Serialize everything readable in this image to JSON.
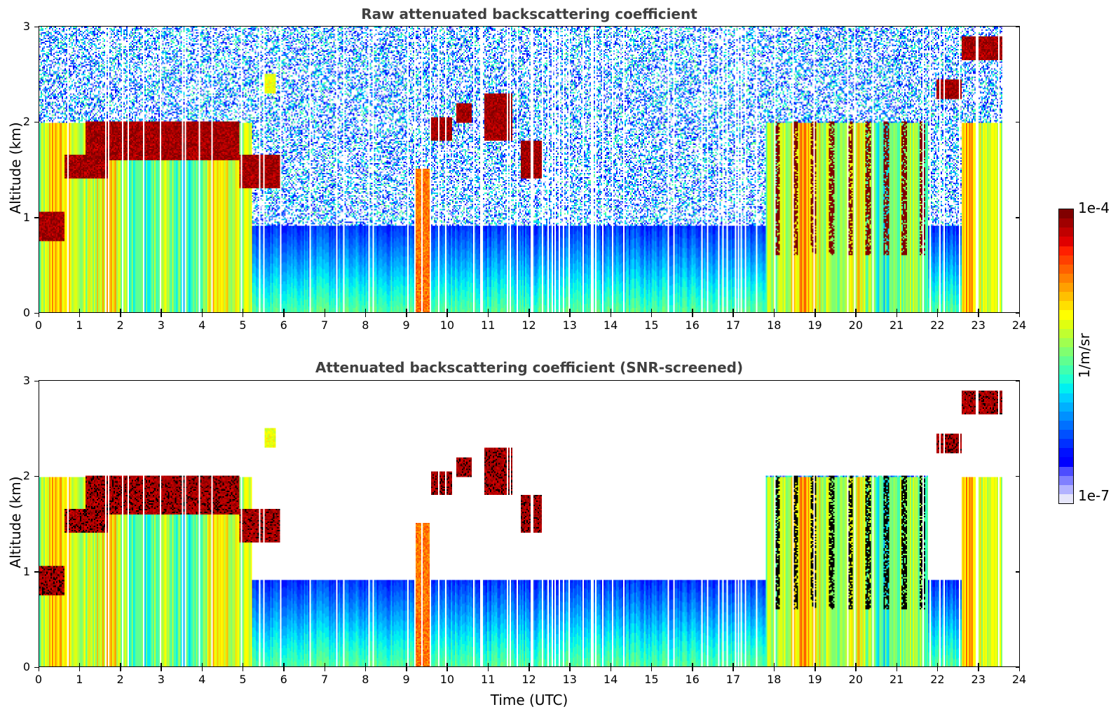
{
  "chart_data": [
    {
      "type": "heatmap",
      "title": "Raw attenuated backscattering coefficient",
      "xlabel": "",
      "ylabel": "Altitude (km)",
      "xlim": [
        0,
        24
      ],
      "ylim": [
        0,
        3
      ],
      "xticks": [
        "0",
        "1",
        "2",
        "3",
        "4",
        "5",
        "6",
        "7",
        "8",
        "9",
        "10",
        "11",
        "12",
        "13",
        "14",
        "15",
        "16",
        "17",
        "18",
        "19",
        "20",
        "21",
        "22",
        "23",
        "24"
      ],
      "yticks": [
        "0",
        "1",
        "2",
        "3"
      ],
      "data_end_time": 23.6,
      "grid": false,
      "features": [
        {
          "name": "low cloud layer",
          "t_start": 0.0,
          "t_end": 0.6,
          "alt_bottom": 0.75,
          "alt_top": 1.05,
          "level": "1e-4"
        },
        {
          "name": "cloud layer",
          "t_start": 0.6,
          "t_end": 1.7,
          "alt_bottom": 1.4,
          "alt_top": 1.65,
          "level": "1e-4"
        },
        {
          "name": "stratocumulus deck",
          "t_start": 1.1,
          "t_end": 4.9,
          "alt_bottom": 1.6,
          "alt_top": 2.0,
          "level": "1e-4"
        },
        {
          "name": "cloud layer",
          "t_start": 4.9,
          "t_end": 5.9,
          "alt_bottom": 1.3,
          "alt_top": 1.65,
          "level": "1e-4"
        },
        {
          "name": "elevated aerosol",
          "t_start": 5.5,
          "t_end": 5.8,
          "alt_bottom": 2.3,
          "alt_top": 2.5,
          "level": "1e-5"
        },
        {
          "name": "cloud patch",
          "t_start": 9.6,
          "t_end": 10.1,
          "alt_bottom": 1.8,
          "alt_top": 2.05,
          "level": "1e-4"
        },
        {
          "name": "cloud patch",
          "t_start": 10.2,
          "t_end": 10.6,
          "alt_bottom": 2.0,
          "alt_top": 2.2,
          "level": "1e-4"
        },
        {
          "name": "cloud patch",
          "t_start": 10.9,
          "t_end": 11.6,
          "alt_bottom": 1.8,
          "alt_top": 2.3,
          "level": "1e-4"
        },
        {
          "name": "cloud patch",
          "t_start": 11.8,
          "t_end": 12.3,
          "alt_bottom": 1.4,
          "alt_top": 1.8,
          "level": "1e-4"
        },
        {
          "name": "precipitation streak",
          "t_start": 9.2,
          "t_end": 9.6,
          "alt_bottom": 0.0,
          "alt_top": 1.5,
          "level": "3e-5"
        },
        {
          "name": "scattered clouds",
          "t_start": 17.8,
          "t_end": 21.8,
          "alt_bottom": 0.6,
          "alt_top": 2.0,
          "level": "1e-4"
        },
        {
          "name": "cloud patch",
          "t_start": 22.0,
          "t_end": 22.6,
          "alt_bottom": 2.25,
          "alt_top": 2.45,
          "level": "1e-4"
        },
        {
          "name": "upper cloud layer",
          "t_start": 22.6,
          "t_end": 23.6,
          "alt_bottom": 2.65,
          "alt_top": 2.9,
          "level": "1e-4"
        },
        {
          "name": "boundary layer aerosol",
          "t_start": 0.0,
          "t_end": 23.6,
          "alt_bottom": 0.0,
          "alt_top": 0.8,
          "level": "1e-6"
        }
      ]
    },
    {
      "type": "heatmap",
      "title": "Attenuated backscattering coefficient (SNR-screened)",
      "xlabel": "Time (UTC)",
      "ylabel": "Altitude (km)",
      "xlim": [
        0,
        24
      ],
      "ylim": [
        0,
        3
      ],
      "xticks": [
        "0",
        "1",
        "2",
        "3",
        "4",
        "5",
        "6",
        "7",
        "8",
        "9",
        "10",
        "11",
        "12",
        "13",
        "14",
        "15",
        "16",
        "17",
        "18",
        "19",
        "20",
        "21",
        "22",
        "23",
        "24"
      ],
      "yticks": [
        "0",
        "1",
        "2",
        "3"
      ],
      "data_end_time": 23.6,
      "grid": false,
      "saturated_color": "#000000",
      "screened_color": "#ffffff"
    }
  ],
  "colorbar": {
    "label": "1/m/sr",
    "max_label": "1e-4",
    "min_label": "1e-7",
    "scale": "log",
    "range": [
      1e-07,
      0.0001
    ],
    "colormap": "jet",
    "colors": [
      "#e6e6fa",
      "#b3b3ff",
      "#8080ff",
      "#4d4dff",
      "#0000ff",
      "#0010ff",
      "#0030ff",
      "#0050ff",
      "#0070ff",
      "#0090ff",
      "#00b0ff",
      "#00d0ff",
      "#00f0f0",
      "#20ffd0",
      "#40ffb0",
      "#60ff90",
      "#80ff70",
      "#a0ff50",
      "#c0ff30",
      "#e0ff10",
      "#ffff00",
      "#ffe000",
      "#ffc000",
      "#ffa000",
      "#ff8000",
      "#ff6000",
      "#ff4000",
      "#ff2000",
      "#e00000",
      "#c00000",
      "#a00000",
      "#800000"
    ]
  }
}
